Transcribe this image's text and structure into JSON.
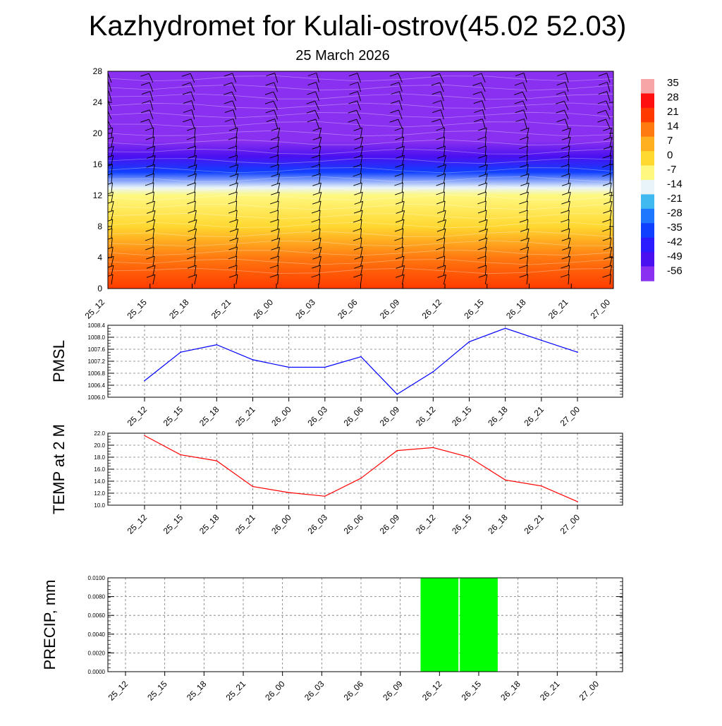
{
  "title": "Kazhydromet for Kulali-ostrov(45.02 52.03)",
  "subtitle": "25 March 2026",
  "time_labels": [
    "25_12",
    "25_15",
    "25_18",
    "25_21",
    "26_00",
    "26_03",
    "26_06",
    "26_09",
    "26_12",
    "26_15",
    "26_18",
    "26_21",
    "27_00"
  ],
  "colorbar": {
    "labels": [
      "35",
      "28",
      "21",
      "14",
      "7",
      "0",
      "-7",
      "-14",
      "-21",
      "-28",
      "-35",
      "-42",
      "-49",
      "-56"
    ],
    "colors": [
      "#f6a6a6",
      "#ff1010",
      "#ff3a00",
      "#ff7a10",
      "#ffb020",
      "#ffd830",
      "#fff880",
      "#e8f4f8",
      "#40b8f0",
      "#1e78ff",
      "#1040ff",
      "#2a1cff",
      "#4a10f0",
      "#8a30f0"
    ]
  },
  "chart_data": [
    {
      "type": "heatmap",
      "description_title": "Temperature cross-section with wind barbs",
      "x": [
        "25_12",
        "25_15",
        "25_18",
        "25_21",
        "26_00",
        "26_03",
        "26_06",
        "26_09",
        "26_12",
        "26_15",
        "26_18",
        "26_21",
        "27_00"
      ],
      "ylim": [
        0,
        28
      ],
      "yticks": [
        0,
        4,
        8,
        12,
        16,
        20,
        24,
        28
      ],
      "value_range": [
        -56,
        35
      ],
      "levels": [
        {
          "y": 0,
          "value": 22
        },
        {
          "y": 4,
          "value": 14
        },
        {
          "y": 8,
          "value": 2
        },
        {
          "y": 12,
          "value": -8
        },
        {
          "y": 13,
          "value": -16
        },
        {
          "y": 15,
          "value": -32
        },
        {
          "y": 17,
          "value": -48
        },
        {
          "y": 19,
          "value": -58
        },
        {
          "y": 21,
          "value": -56
        },
        {
          "y": 24,
          "value": -60
        },
        {
          "y": 28,
          "value": -54
        }
      ]
    },
    {
      "type": "line",
      "ylabel": "PMSL",
      "x": [
        "25_12",
        "25_15",
        "25_18",
        "25_21",
        "26_00",
        "26_03",
        "26_06",
        "26_09",
        "26_12",
        "26_15",
        "26_18",
        "26_21",
        "27_00"
      ],
      "values": [
        1006.55,
        1007.5,
        1007.75,
        1007.25,
        1007.0,
        1007.0,
        1007.35,
        1006.1,
        1006.85,
        1007.85,
        1008.3,
        1007.9,
        1007.5
      ],
      "ylim": [
        1006.0,
        1008.4
      ],
      "yticks": [
        "1006.0",
        "1006.4",
        "1006.8",
        "1007.2",
        "1007.6",
        "1008.0",
        "1008.4"
      ],
      "color": "#0000ff"
    },
    {
      "type": "line",
      "ylabel": "TEMP at 2 M",
      "x": [
        "25_12",
        "25_15",
        "25_18",
        "25_21",
        "26_00",
        "26_03",
        "26_06",
        "26_09",
        "26_12",
        "26_15",
        "26_18",
        "26_21",
        "27_00"
      ],
      "values": [
        21.6,
        18.4,
        17.4,
        13.1,
        12.1,
        11.5,
        14.5,
        19.1,
        19.6,
        18.0,
        14.2,
        13.2,
        10.6
      ],
      "ylim": [
        10.0,
        22.0
      ],
      "yticks": [
        "10.0",
        "12.0",
        "14.0",
        "16.0",
        "18.0",
        "20.0",
        "22.0"
      ],
      "color": "#ff0000"
    },
    {
      "type": "bar",
      "ylabel": "PRECIP, mm",
      "x": [
        "25_12",
        "25_15",
        "25_18",
        "25_21",
        "26_00",
        "26_03",
        "26_06",
        "26_09",
        "26_12",
        "26_15",
        "26_18",
        "26_21",
        "27_00"
      ],
      "values": [
        0,
        0,
        0,
        0,
        0,
        0,
        0,
        0,
        0.01,
        0.01,
        0,
        0,
        0
      ],
      "ylim": [
        0,
        0.01
      ],
      "yticks": [
        "0.0000",
        "0.0020",
        "0.0040",
        "0.0060",
        "0.0080",
        "0.0100"
      ],
      "color": "#00ff00"
    }
  ]
}
